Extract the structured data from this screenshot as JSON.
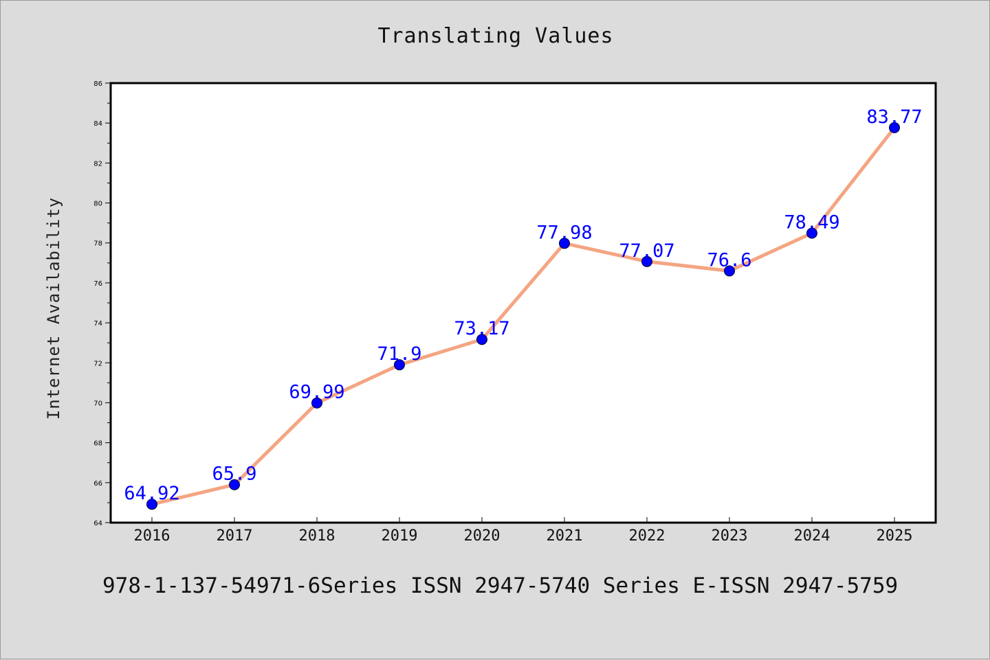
{
  "title": "Translating Values",
  "footer_text": "978-1-137-54971-6Series ISSN 2947-5740 Series E-ISSN 2947-5759",
  "colors": {
    "background": "#dcdcdc",
    "plot_area": "#ffffff",
    "line": "#f4a582",
    "marker": "#0000ff",
    "data_label": "#0000ff"
  },
  "chart_data": {
    "type": "line",
    "title": "Translating Values",
    "xlabel": "",
    "ylabel": "Internet Availability",
    "categories": [
      "2016",
      "2017",
      "2018",
      "2019",
      "2020",
      "2021",
      "2022",
      "2023",
      "2024",
      "2025"
    ],
    "series": [
      {
        "values": [
          64.92,
          65.9,
          69.99,
          71.9,
          73.17,
          77.98,
          77.07,
          76.6,
          78.49,
          83.77
        ],
        "labels": [
          "64.92",
          "65.9",
          "69.99",
          "71.9",
          "73.17",
          "77.98",
          "77.07",
          "76.6",
          "78.49",
          "83.77"
        ]
      }
    ],
    "ylim": [
      64,
      86
    ],
    "yticks": [
      "64",
      "66",
      "68",
      "70",
      "72",
      "74",
      "76",
      "78",
      "80",
      "82",
      "84",
      "86"
    ],
    "grid": false,
    "legend": "none"
  }
}
